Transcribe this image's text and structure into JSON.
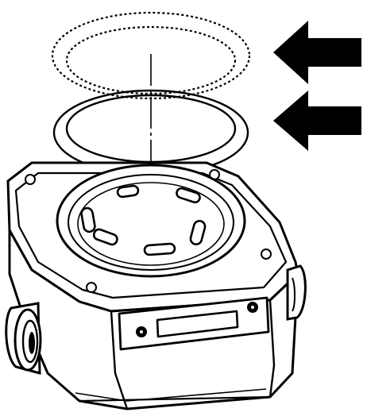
{
  "illustration": {
    "subject": "exploded-view",
    "icons": {
      "arrow": "arrow-left-icon",
      "upper_ring": "o-ring-icon",
      "lower_ring": "gasket-ring-icon",
      "body": "pump-housing-icon"
    },
    "colors": {
      "ink": "#000000",
      "background": "#ffffff"
    },
    "arrow_count": 2
  }
}
